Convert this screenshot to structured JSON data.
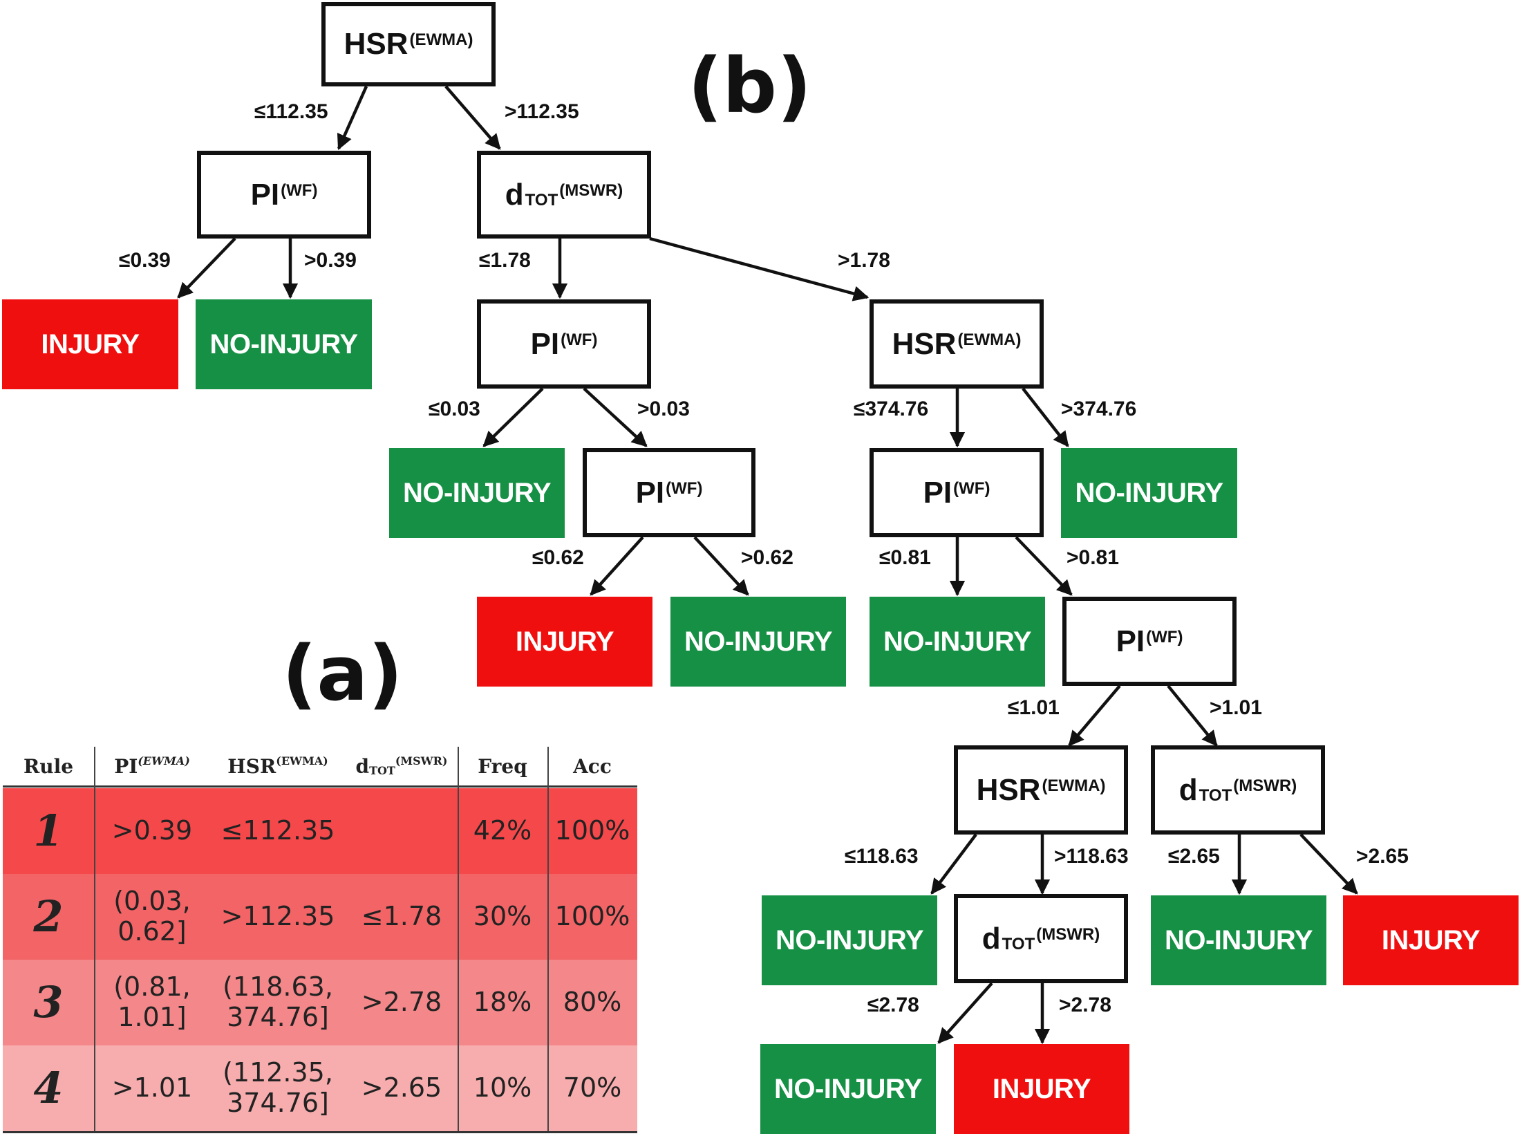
{
  "panels": {
    "a": "(a)",
    "b": "(b)"
  },
  "nodes": {
    "hsr_top": {
      "main": "HSR",
      "sup": "(EWMA)"
    },
    "pi_left": {
      "main": "PI",
      "sup": "(WF)"
    },
    "dtot_right": {
      "main": "d",
      "sub": "TOT",
      "sup": "(MSWR)"
    },
    "pi_mid": {
      "main": "PI",
      "sup": "(WF)"
    },
    "hsr_mid": {
      "main": "HSR",
      "sup": "(EWMA)"
    },
    "pi_lower": {
      "main": "PI",
      "sup": "(WF)"
    },
    "pi_right": {
      "main": "PI",
      "sup": "(WF)"
    },
    "pi_deep": {
      "main": "PI",
      "sup": "(WF)"
    },
    "hsr_low": {
      "main": "HSR",
      "sup": "(EWMA)"
    },
    "dtot_low": {
      "main": "d",
      "sub": "TOT",
      "sup": "(MSWR)"
    },
    "dtot_bottom": {
      "main": "d",
      "sub": "TOT",
      "sup": "(MSWR)"
    }
  },
  "leaves": {
    "l1": "INJURY",
    "l2": "NO-INJURY",
    "l3": "NO-INJURY",
    "l4": "NO-INJURY",
    "l5": "INJURY",
    "l6": "NO-INJURY",
    "l7": "NO-INJURY",
    "l8": "NO-INJURY",
    "l9": "NO-INJURY",
    "l10": "INJURY",
    "l11": "NO-INJURY",
    "l12": "INJURY"
  },
  "edge_labels": {
    "e1": "≤112.35",
    "e2": ">112.35",
    "e3": "≤0.39",
    "e4": ">0.39",
    "e5": "≤1.78",
    "e6": ">1.78",
    "e7": "≤0.03",
    "e8": ">0.03",
    "e9": "≤374.76",
    "e10": ">374.76",
    "e11": "≤0.62",
    "e12": ">0.62",
    "e13": "≤0.81",
    "e14": ">0.81",
    "e15": "≤1.01",
    "e16": ">1.01",
    "e17": "≤118.63",
    "e18": ">118.63",
    "e19": "≤2.65",
    "e20": ">2.65",
    "e21": "≤2.78",
    "e22": ">2.78"
  },
  "table": {
    "headers": {
      "rule": "Rule",
      "pi": {
        "main": "PI",
        "sup": "(EWMA)"
      },
      "hsr": {
        "main": "HSR",
        "sup": "(EWMA)"
      },
      "dtot": {
        "main": "d",
        "sub": "TOT",
        "sup": "(MSWR)"
      },
      "freq": "Freq",
      "acc": "Acc"
    },
    "rows": [
      {
        "rule": "1",
        "pi": ">0.39",
        "hsr": "≤112.35",
        "dtot": "",
        "freq": "42%",
        "acc": "100%",
        "color": "#f5484a"
      },
      {
        "rule": "2",
        "pi": "(0.03,\n0.62]",
        "hsr": ">112.35",
        "dtot": "≤1.78",
        "freq": "30%",
        "acc": "100%",
        "color": "#f26466"
      },
      {
        "rule": "3",
        "pi": "(0.81,\n1.01]",
        "hsr": "(118.63,\n374.76]",
        "dtot": ">2.78",
        "freq": "18%",
        "acc": "80%",
        "color": "#f48789"
      },
      {
        "rule": "4",
        "pi": ">1.01",
        "hsr": "(112.35,\n374.76]",
        "dtot": ">2.65",
        "freq": "10%",
        "acc": "70%",
        "color": "#f7adae"
      }
    ]
  },
  "colors": {
    "injury": "#f00f0f",
    "no_injury": "#169045",
    "border": "#111111"
  }
}
